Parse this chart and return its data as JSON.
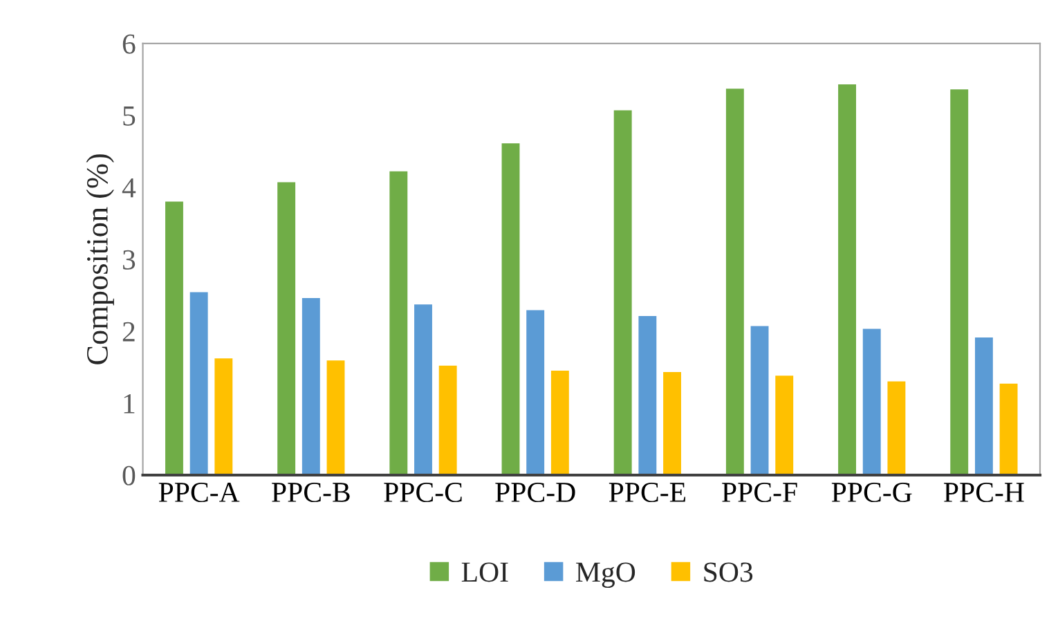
{
  "chart_data": {
    "type": "bar",
    "ylabel": "Composition (%)",
    "categories": [
      "PPC-A",
      "PPC-B",
      "PPC-C",
      "PPC-D",
      "PPC-E",
      "PPC-F",
      "PPC-G",
      "PPC-H"
    ],
    "series": [
      {
        "name": "LOI",
        "color": "#70ad47",
        "values": [
          3.81,
          4.08,
          4.23,
          4.62,
          5.08,
          5.38,
          5.44,
          5.37
        ]
      },
      {
        "name": "MgO",
        "color": "#5b9bd5",
        "values": [
          2.55,
          2.47,
          2.38,
          2.3,
          2.22,
          2.08,
          2.04,
          1.92
        ]
      },
      {
        "name": "SO3",
        "color": "#ffc000",
        "values": [
          1.63,
          1.6,
          1.53,
          1.46,
          1.44,
          1.39,
          1.31,
          1.28
        ]
      }
    ],
    "ylim": [
      0,
      6
    ],
    "yticks": [
      0,
      1,
      2,
      3,
      4,
      5,
      6
    ],
    "grid": false,
    "legend": "bottom"
  }
}
